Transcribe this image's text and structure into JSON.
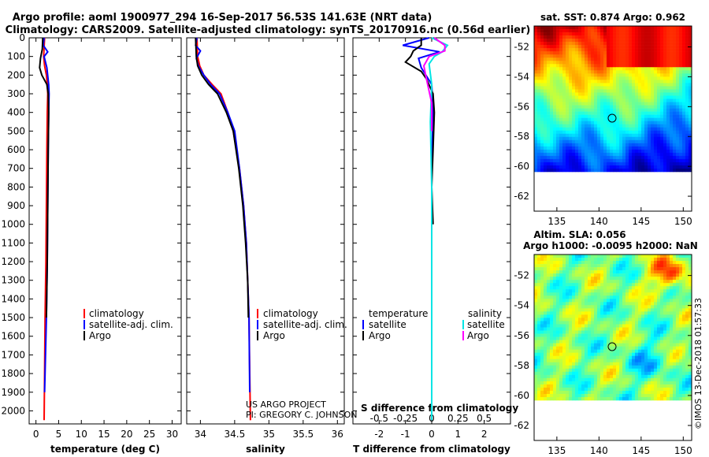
{
  "title_line1": "Argo profile: aoml 1900977_294 16-Sep-2017 56.53S 141.63E (NRT data)",
  "title_line2": "Climatology: CARS2009. Satellite-adjusted climatology: synTS_20170916.nc (0.56d earlier)",
  "colors": {
    "climatology": "#ff0000",
    "satellite": "#0000ff",
    "argo": "#000000",
    "temp_satellite": "#0000ff",
    "sal_satellite": "#00e5e5",
    "sal_argo": "#ff00ff"
  },
  "legend": {
    "climatology": "climatology",
    "satellite_adj": "satellite-adj. clim.",
    "argo": "Argo",
    "temperature": "temperature",
    "salinity": "salinity",
    "satellite": "satellite"
  },
  "credit": {
    "line1": "US ARGO PROJECT",
    "line2": "PI: GREGORY C. JOHNSON"
  },
  "stamp": "©IMOS 13-Dec-2018 01:57:33",
  "map_sst": {
    "title": "sat. SST: 0.874 Argo: 0.962",
    "xticks": [
      "135",
      "140",
      "145",
      "150"
    ],
    "yticks": [
      "-52",
      "-54",
      "-56",
      "-58",
      "-60",
      "-62"
    ]
  },
  "map_sla": {
    "title1": "Altim. SLA: 0.056",
    "title2": "Argo h1000: -0.0095 h2000: NaN",
    "xticks": [
      "135",
      "140",
      "145",
      "150"
    ],
    "yticks": [
      "-52",
      "-54",
      "-56",
      "-58",
      "-60",
      "-62"
    ]
  },
  "chart_data": [
    {
      "type": "line",
      "title": "temperature",
      "xlabel": "temperature (deg C)",
      "ylabel": "",
      "xlim": [
        -1.5,
        32
      ],
      "ylim": [
        2070,
        0
      ],
      "xticks": [
        0,
        5,
        10,
        15,
        20,
        25,
        30
      ],
      "yticks": [
        0,
        100,
        200,
        300,
        400,
        500,
        600,
        700,
        800,
        900,
        1000,
        1100,
        1200,
        1300,
        1400,
        1500,
        1600,
        1700,
        1800,
        1900,
        2000
      ],
      "series": [
        {
          "name": "climatology",
          "color": "#ff0000",
          "x": [
            1.9,
            1.8,
            1.7,
            1.9,
            2.3,
            2.5,
            2.6,
            2.5,
            2.4,
            2.3,
            2.2,
            2.0,
            1.9,
            1.8
          ],
          "y": [
            0,
            50,
            100,
            150,
            200,
            250,
            300,
            400,
            600,
            900,
            1200,
            1500,
            1800,
            2050
          ]
        },
        {
          "name": "satellite-adj. clim.",
          "color": "#0000ff",
          "x": [
            1.8,
            1.6,
            2.6,
            1.8,
            2.4,
            2.8,
            2.9,
            2.8,
            2.7,
            2.6,
            2.5,
            2.3,
            2.0,
            1.9
          ],
          "y": [
            0,
            40,
            75,
            100,
            160,
            250,
            300,
            400,
            600,
            900,
            1200,
            1500,
            1800,
            1900
          ]
        },
        {
          "name": "Argo",
          "color": "#000000",
          "x": [
            1.5,
            1.4,
            1.0,
            0.8,
            1.3,
            2.4,
            2.7,
            2.8,
            2.7,
            2.6,
            2.5,
            2.3
          ],
          "y": [
            0,
            60,
            110,
            160,
            200,
            250,
            300,
            400,
            600,
            900,
            1200,
            1500
          ]
        }
      ]
    },
    {
      "type": "line",
      "title": "salinity",
      "xlabel": "salinity",
      "ylabel": "",
      "xlim": [
        33.8,
        36.1
      ],
      "ylim": [
        2070,
        0
      ],
      "xticks": [
        34,
        34.5,
        35,
        35.5,
        36
      ],
      "series": [
        {
          "name": "climatology",
          "color": "#ff0000",
          "x": [
            33.95,
            33.96,
            33.99,
            34.05,
            34.17,
            34.3,
            34.4,
            34.48,
            34.57,
            34.63,
            34.67,
            34.69,
            34.71,
            34.72,
            34.73
          ],
          "y": [
            0,
            100,
            150,
            200,
            250,
            300,
            400,
            500,
            700,
            900,
            1100,
            1300,
            1500,
            1800,
            2050
          ]
        },
        {
          "name": "satellite-adj. clim.",
          "color": "#0000ff",
          "x": [
            33.95,
            33.93,
            34.0,
            33.94,
            33.97,
            34.05,
            34.15,
            34.28,
            34.4,
            34.5,
            34.57,
            34.63,
            34.67,
            34.69,
            34.71,
            34.72
          ],
          "y": [
            0,
            40,
            70,
            110,
            150,
            200,
            250,
            300,
            400,
            500,
            700,
            900,
            1100,
            1300,
            1500,
            1900
          ]
        },
        {
          "name": "Argo",
          "color": "#000000",
          "x": [
            33.93,
            33.94,
            33.96,
            34.02,
            34.12,
            34.25,
            34.38,
            34.48,
            34.56,
            34.62,
            34.66,
            34.69,
            34.7
          ],
          "y": [
            0,
            100,
            150,
            200,
            250,
            300,
            400,
            500,
            700,
            900,
            1100,
            1300,
            1500
          ]
        }
      ]
    },
    {
      "type": "line",
      "title": "difference from climatology",
      "xlabel": "T difference from climatology",
      "xlabel_top": "S difference from climatology",
      "ylabel": "",
      "xlim": [
        -3,
        3
      ],
      "ylim": [
        2070,
        0
      ],
      "xticks": [
        -2,
        -1,
        0,
        1,
        2
      ],
      "xticks_top": [
        -0.5,
        -0.25,
        0,
        0.25,
        0.5
      ],
      "xticks_top_labels": [
        "-0.5",
        "-0.25",
        "0",
        "0.25",
        "0.5"
      ],
      "series": [
        {
          "name": "temperature satellite",
          "color": "#0000ff",
          "x": [
            -0.1,
            -1.1,
            0.3,
            -0.5,
            -0.4,
            0.0,
            0.05,
            0.0,
            0.0
          ],
          "y": [
            0,
            40,
            75,
            110,
            160,
            250,
            400,
            700,
            1000
          ]
        },
        {
          "name": "temperature Argo",
          "color": "#000000",
          "x": [
            -0.4,
            -0.4,
            -0.7,
            -0.8,
            -1.0,
            -0.4,
            -0.2,
            0.05,
            0.1,
            0.05,
            0.0,
            0.05
          ],
          "y": [
            0,
            40,
            70,
            100,
            130,
            180,
            220,
            300,
            400,
            600,
            800,
            1000
          ]
        },
        {
          "name": "salinity satellite",
          "color": "#00e5e5",
          "x": [
            0.0,
            0.6,
            0.4,
            0.1,
            -0.1,
            0.0,
            -0.05,
            0.0,
            0.0,
            0.0
          ],
          "y": [
            0,
            40,
            75,
            100,
            140,
            250,
            450,
            800,
            1300,
            2050
          ]
        },
        {
          "name": "salinity Argo",
          "color": "#ff00ff",
          "x": [
            0.1,
            0.5,
            0.5,
            -0.1,
            -0.3,
            -0.2,
            0.0,
            0.0
          ],
          "y": [
            0,
            40,
            70,
            100,
            150,
            220,
            350,
            500
          ]
        }
      ]
    }
  ]
}
